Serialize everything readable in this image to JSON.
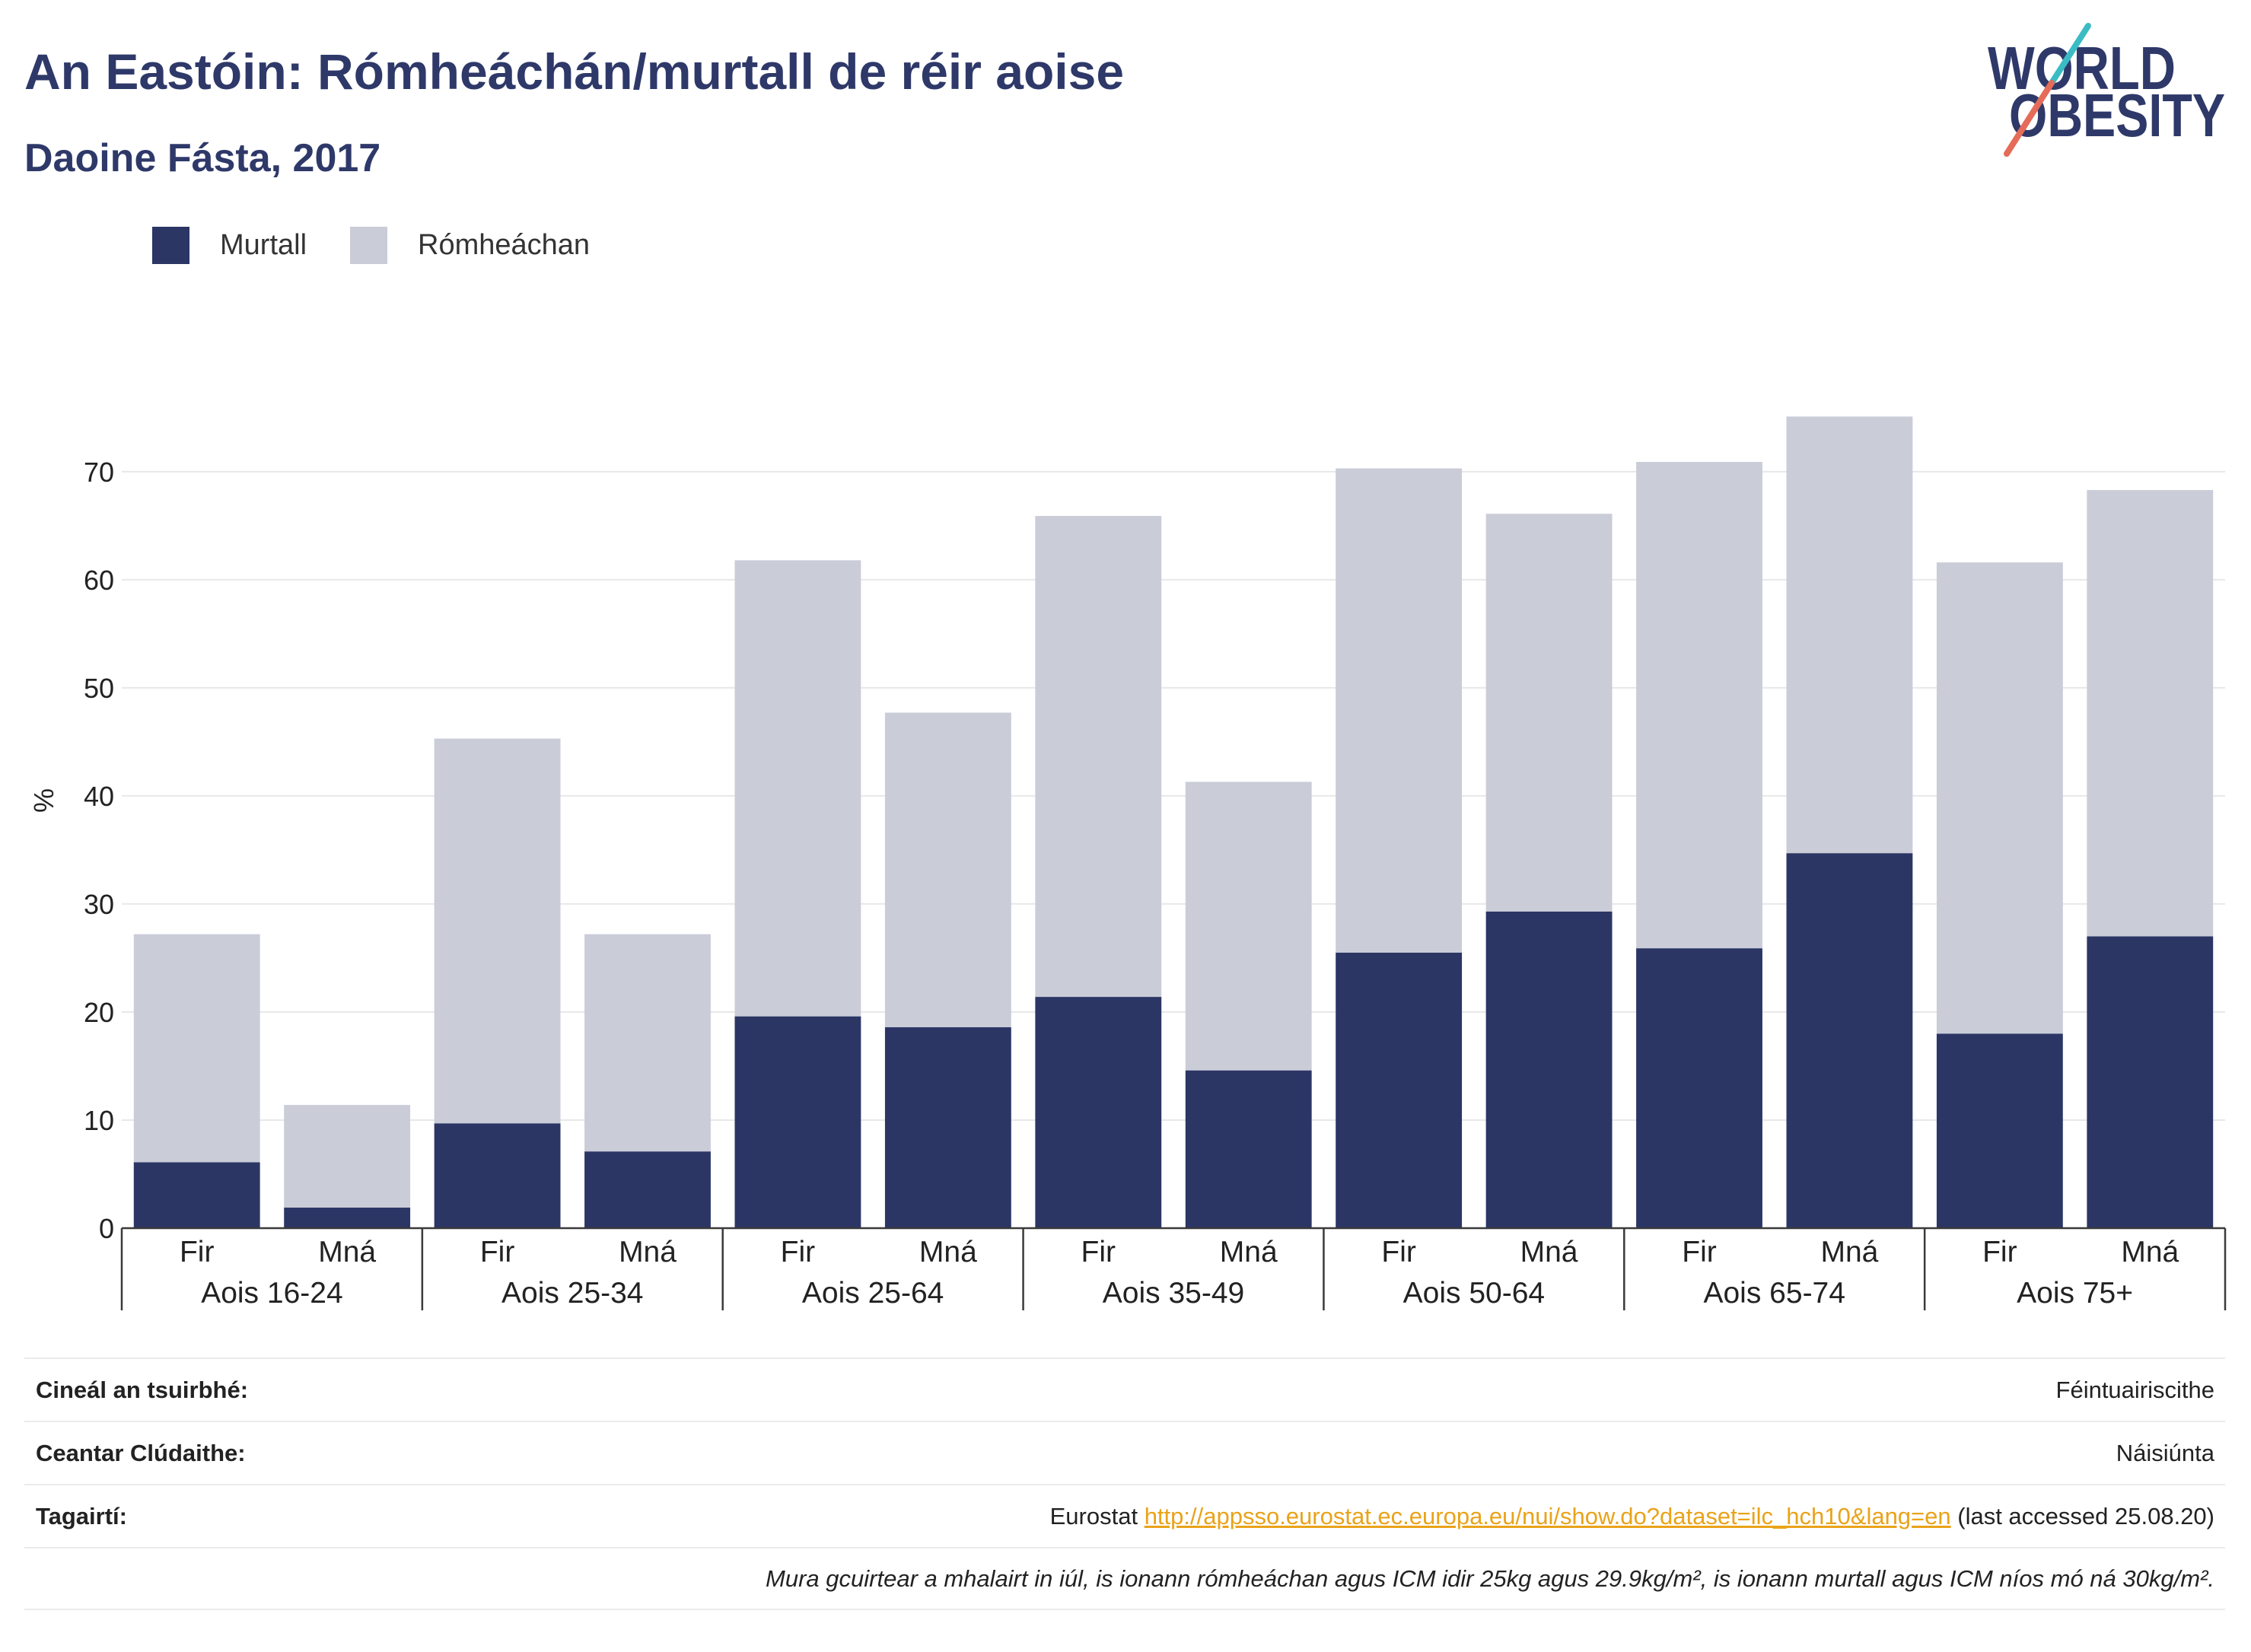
{
  "theme": {
    "title_color": "#2e3969",
    "link_color": "#e9a319"
  },
  "logo": {
    "line1": "WORLD",
    "line2": "OBESITY",
    "accent_top": "#3bbcc4",
    "accent_bottom": "#e46c59"
  },
  "chart_data": {
    "type": "bar",
    "stacked": true,
    "title": "An Eastóin: Rómheáchán/murtall de réir aoise",
    "subtitle": "Daoine Fásta, 2017",
    "xlabel": "",
    "ylabel": "%",
    "ylim": [
      0,
      79
    ],
    "yticks": [
      0,
      10,
      20,
      30,
      40,
      50,
      60,
      70
    ],
    "grid": true,
    "legend": "top-left",
    "groups": [
      {
        "label": "Aois 16-24",
        "categories": [
          "Fir",
          "Mná"
        ]
      },
      {
        "label": "Aois 25-34",
        "categories": [
          "Fir",
          "Mná"
        ]
      },
      {
        "label": "Aois 25-64",
        "categories": [
          "Fir",
          "Mná"
        ]
      },
      {
        "label": "Aois 35-49",
        "categories": [
          "Fir",
          "Mná"
        ]
      },
      {
        "label": "Aois 50-64",
        "categories": [
          "Fir",
          "Mná"
        ]
      },
      {
        "label": "Aois 65-74",
        "categories": [
          "Fir",
          "Mná"
        ]
      },
      {
        "label": "Aois 75+",
        "categories": [
          "Fir",
          "Mná"
        ]
      }
    ],
    "series": [
      {
        "name": "Murtall",
        "color": "#2b3665",
        "values": [
          6.1,
          1.9,
          9.7,
          7.1,
          19.6,
          18.6,
          21.4,
          14.6,
          25.5,
          29.3,
          25.9,
          34.7,
          18.0,
          27.0
        ]
      },
      {
        "name": "Rómheáchan",
        "color": "#caccd8",
        "values": [
          21.1,
          9.5,
          35.6,
          20.1,
          42.2,
          29.1,
          44.5,
          26.7,
          44.8,
          36.8,
          45.0,
          40.4,
          43.6,
          41.3
        ]
      }
    ]
  },
  "footer": {
    "rows": [
      {
        "label": "Cineál an tsuirbhé:",
        "value": "Féintuairiscithe"
      },
      {
        "label": "Ceantar Clúdaithe:",
        "value": "Náisiúnta"
      },
      {
        "label": "Tagairtí:",
        "value_prefix": "Eurostat ",
        "link": "http://appsso.eurostat.ec.europa.eu/nui/show.do?dataset=ilc_hch10&lang=en",
        "value_suffix": " (last accessed 25.08.20)"
      },
      {
        "note": "Mura gcuirtear a mhalairt in iúl, is ionann rómheáchan agus ICM idir 25kg agus 29.9kg/m², is ionann murtall agus ICM níos mó ná 30kg/m²."
      }
    ]
  }
}
